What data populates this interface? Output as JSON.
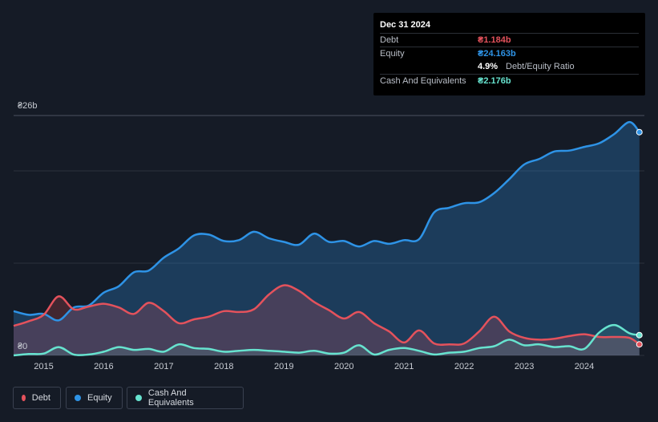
{
  "tooltip": {
    "date": "Dec 31 2024",
    "debt_label": "Debt",
    "debt_value": "₴1.184b",
    "equity_label": "Equity",
    "equity_value": "₴24.163b",
    "ratio_value": "4.9%",
    "ratio_label": "Debt/Equity Ratio",
    "cash_label": "Cash And Equivalents",
    "cash_value": "₴2.176b"
  },
  "legend": [
    {
      "label": "Debt",
      "color": "#e4525c"
    },
    {
      "label": "Equity",
      "color": "#2e93e6"
    },
    {
      "label": "Cash And Equivalents",
      "color": "#67e3cf"
    }
  ],
  "colors": {
    "background": "#151b26",
    "debt": "#e4525c",
    "equity": "#2e93e6",
    "cash": "#67e3cf"
  },
  "chart_data": {
    "type": "area",
    "y_unit": "₴ billions",
    "ylim": [
      0,
      26
    ],
    "y_tick_labels": [
      "₴0",
      "₴26b"
    ],
    "x_tick_labels": [
      "2015",
      "2016",
      "2017",
      "2018",
      "2019",
      "2020",
      "2021",
      "2022",
      "2023",
      "2024"
    ],
    "grid": true,
    "legend_position": "bottom-left",
    "series": [
      {
        "name": "Debt",
        "x": [
          "2014-07",
          "2014-10",
          "2015-01",
          "2015-04",
          "2015-07",
          "2015-10",
          "2016-01",
          "2016-04",
          "2016-07",
          "2016-10",
          "2017-01",
          "2017-04",
          "2017-07",
          "2017-10",
          "2018-01",
          "2018-04",
          "2018-07",
          "2018-10",
          "2019-01",
          "2019-04",
          "2019-07",
          "2019-10",
          "2020-01",
          "2020-04",
          "2020-07",
          "2020-10",
          "2021-01",
          "2021-04",
          "2021-07",
          "2021-10",
          "2022-01",
          "2022-04",
          "2022-07",
          "2022-10",
          "2023-01",
          "2023-04",
          "2023-07",
          "2023-10",
          "2024-01",
          "2024-04",
          "2024-07",
          "2024-10",
          "2024-12"
        ],
        "values": [
          3.2,
          3.7,
          4.4,
          6.4,
          5.0,
          5.3,
          5.6,
          5.2,
          4.5,
          5.7,
          4.8,
          3.5,
          3.9,
          4.2,
          4.8,
          4.7,
          5.0,
          6.6,
          7.6,
          7.0,
          5.8,
          4.9,
          4.0,
          4.7,
          3.5,
          2.6,
          1.4,
          2.7,
          1.3,
          1.2,
          1.3,
          2.6,
          4.2,
          2.6,
          1.9,
          1.7,
          1.8,
          2.1,
          2.3,
          2.0,
          2.0,
          1.9,
          1.2
        ]
      },
      {
        "name": "Equity",
        "x": [
          "2014-07",
          "2014-10",
          "2015-01",
          "2015-04",
          "2015-07",
          "2015-10",
          "2016-01",
          "2016-04",
          "2016-07",
          "2016-10",
          "2017-01",
          "2017-04",
          "2017-07",
          "2017-10",
          "2018-01",
          "2018-04",
          "2018-07",
          "2018-10",
          "2019-01",
          "2019-04",
          "2019-07",
          "2019-10",
          "2020-01",
          "2020-04",
          "2020-07",
          "2020-10",
          "2021-01",
          "2021-04",
          "2021-07",
          "2021-10",
          "2022-01",
          "2022-04",
          "2022-07",
          "2022-10",
          "2023-01",
          "2023-04",
          "2023-07",
          "2023-10",
          "2024-01",
          "2024-04",
          "2024-07",
          "2024-10",
          "2024-12"
        ],
        "values": [
          4.8,
          4.4,
          4.5,
          3.8,
          5.2,
          5.4,
          6.8,
          7.5,
          9.0,
          9.2,
          10.6,
          11.6,
          13.0,
          13.1,
          12.4,
          12.5,
          13.4,
          12.7,
          12.3,
          12.0,
          13.2,
          12.3,
          12.4,
          11.8,
          12.4,
          12.1,
          12.5,
          12.6,
          15.5,
          16.0,
          16.5,
          16.6,
          17.6,
          19.1,
          20.7,
          21.3,
          22.1,
          22.2,
          22.6,
          23.0,
          24.0,
          25.3,
          24.2
        ]
      },
      {
        "name": "Cash And Equivalents",
        "x": [
          "2014-07",
          "2014-10",
          "2015-01",
          "2015-04",
          "2015-07",
          "2015-10",
          "2016-01",
          "2016-04",
          "2016-07",
          "2016-10",
          "2017-01",
          "2017-04",
          "2017-07",
          "2017-10",
          "2018-01",
          "2018-04",
          "2018-07",
          "2018-10",
          "2019-01",
          "2019-04",
          "2019-07",
          "2019-10",
          "2020-01",
          "2020-04",
          "2020-07",
          "2020-10",
          "2021-01",
          "2021-04",
          "2021-07",
          "2021-10",
          "2022-01",
          "2022-04",
          "2022-07",
          "2022-10",
          "2023-01",
          "2023-04",
          "2023-07",
          "2023-10",
          "2024-01",
          "2024-04",
          "2024-07",
          "2024-10",
          "2024-12"
        ],
        "values": [
          0.0,
          0.15,
          0.2,
          0.9,
          0.1,
          0.1,
          0.4,
          0.9,
          0.6,
          0.7,
          0.4,
          1.2,
          0.8,
          0.7,
          0.4,
          0.5,
          0.6,
          0.5,
          0.4,
          0.3,
          0.5,
          0.2,
          0.3,
          1.1,
          0.1,
          0.6,
          0.8,
          0.5,
          0.1,
          0.3,
          0.4,
          0.8,
          1.0,
          1.7,
          1.1,
          1.2,
          0.9,
          1.0,
          0.7,
          2.5,
          3.3,
          2.4,
          2.2
        ]
      }
    ]
  }
}
